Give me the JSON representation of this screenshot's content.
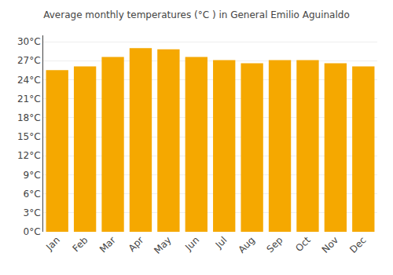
{
  "chart_data": {
    "type": "bar",
    "title": "Average monthly temperatures (°C ) in General Emilio Aguinaldo",
    "categories": [
      "Jan",
      "Feb",
      "Mar",
      "Apr",
      "May",
      "Jun",
      "Jul",
      "Aug",
      "Sep",
      "Oct",
      "Nov",
      "Dec"
    ],
    "values": [
      25.5,
      26.1,
      27.6,
      29.0,
      28.8,
      27.6,
      27.1,
      26.6,
      27.1,
      27.1,
      26.6,
      26.1
    ],
    "color": "#F5A800",
    "ylim": [
      0,
      31
    ],
    "yticks": [
      {
        "value": 0,
        "label": "0°C"
      },
      {
        "value": 3,
        "label": "3°C"
      },
      {
        "value": 6,
        "label": "6°C"
      },
      {
        "value": 9,
        "label": "9°C"
      },
      {
        "value": 12,
        "label": "12°C"
      },
      {
        "value": 15,
        "label": "15°C"
      },
      {
        "value": 18,
        "label": "18°C"
      },
      {
        "value": 21,
        "label": "21°C"
      },
      {
        "value": 24,
        "label": "24°C"
      },
      {
        "value": 27,
        "label": "27°C"
      },
      {
        "value": 30,
        "label": "30°C"
      }
    ],
    "grid": true
  }
}
